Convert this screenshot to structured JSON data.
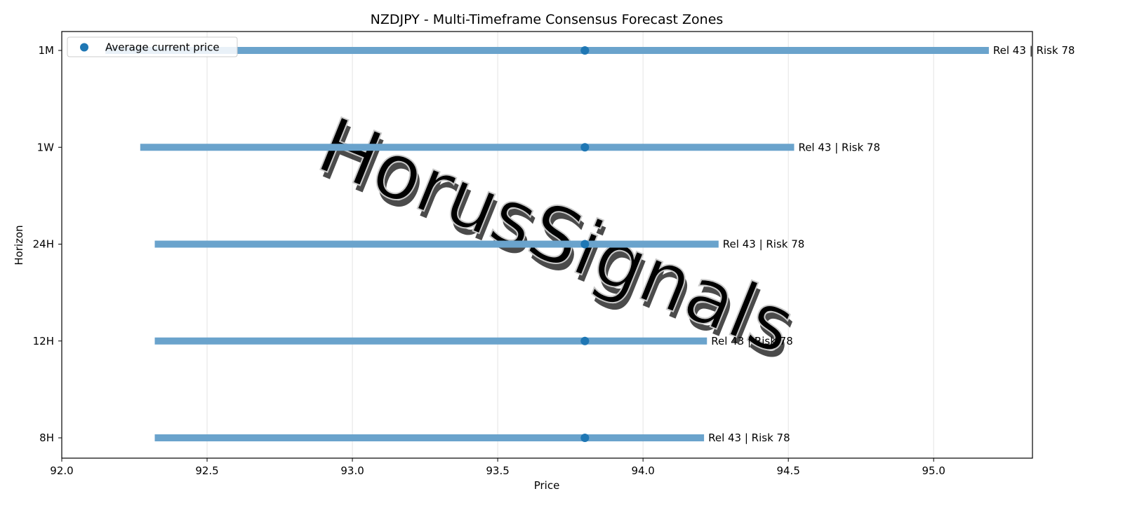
{
  "chart_data": {
    "type": "range",
    "title": "NZDJPY - Multi-Timeframe Consensus Forecast Zones",
    "xlabel": "Price",
    "ylabel": "Horizon",
    "xlim": [
      92.0,
      95.34
    ],
    "x_ticks": [
      "92.0",
      "92.5",
      "93.0",
      "93.5",
      "94.0",
      "94.5",
      "95.0"
    ],
    "grid": "vertical",
    "legend": {
      "placement": "top-left",
      "entries": [
        "Average current price"
      ]
    },
    "watermark": "HorusSignals",
    "colors": {
      "zone": "#6aa3cc",
      "marker": "#1f77b4",
      "grid": "#e3e3e3"
    },
    "zones": [
      {
        "horizon": "1M",
        "low": 92.15,
        "high": 95.19,
        "current": 93.8,
        "label": "Rel 43 | Risk 78"
      },
      {
        "horizon": "1W",
        "low": 92.27,
        "high": 94.52,
        "current": 93.8,
        "label": "Rel 43 | Risk 78"
      },
      {
        "horizon": "24H",
        "low": 92.32,
        "high": 94.26,
        "current": 93.8,
        "label": "Rel 43 | Risk 78"
      },
      {
        "horizon": "12H",
        "low": 92.32,
        "high": 94.22,
        "current": 93.8,
        "label": "Rel 43 | Risk 78"
      },
      {
        "horizon": "8H",
        "low": 92.32,
        "high": 94.21,
        "current": 93.8,
        "label": "Rel 43 | Risk 78"
      }
    ]
  }
}
